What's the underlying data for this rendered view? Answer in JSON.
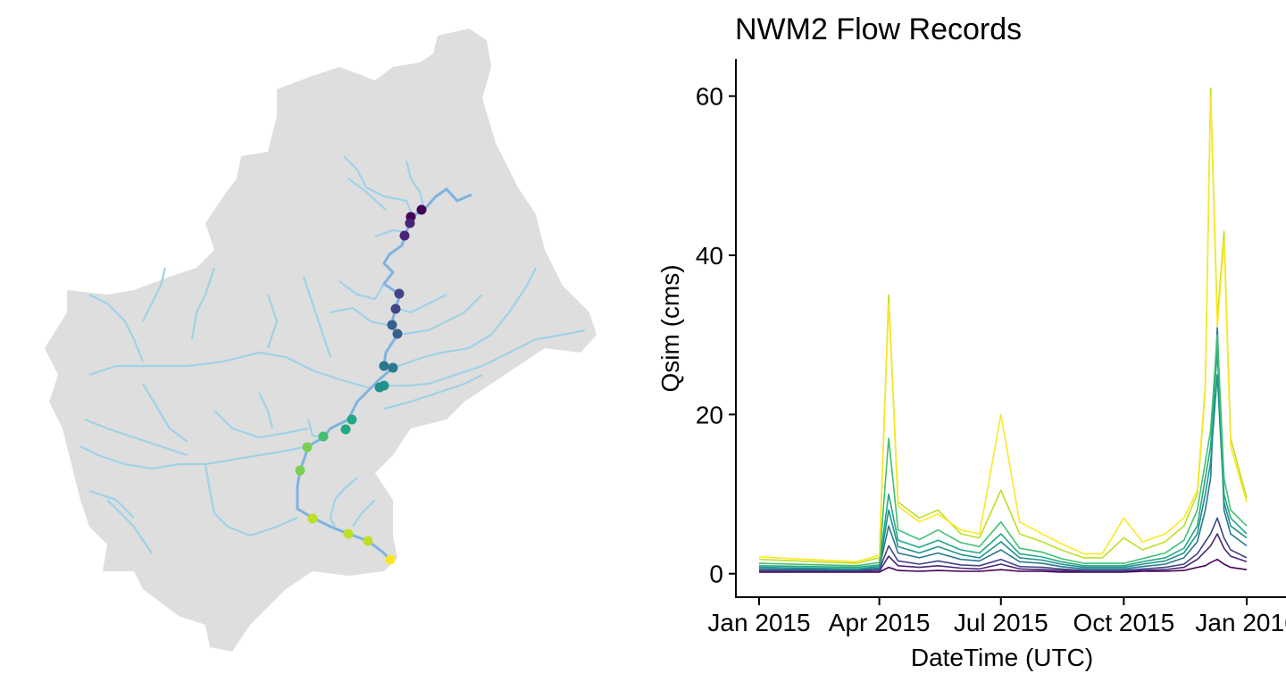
{
  "map": {
    "palette": [
      "#440154",
      "#482576",
      "#414487",
      "#35608d",
      "#2a788e",
      "#21918c",
      "#22a884",
      "#43bf71",
      "#7ad151",
      "#bddf26",
      "#fde725"
    ],
    "colors": {
      "basin_fill": "#dedede",
      "river": "#9fd2e8",
      "mainstem": "#7fb3df"
    }
  },
  "chart_data": {
    "type": "line",
    "title": "NWM2 Flow Records",
    "xlabel": "DateTime (UTC)",
    "ylabel": "Qsim (cms)",
    "xlim": [
      "2015-01-01",
      "2016-01-01"
    ],
    "ylim": [
      -2.5,
      64
    ],
    "x_ticks": [
      {
        "date": "2015-01-01",
        "label": "Jan 2015"
      },
      {
        "date": "2015-04-01",
        "label": "Apr 2015"
      },
      {
        "date": "2015-07-01",
        "label": "Jul 2015"
      },
      {
        "date": "2015-10-01",
        "label": "Oct 2015"
      },
      {
        "date": "2016-01-01",
        "label": "Jan 2016"
      }
    ],
    "y_ticks": [
      0,
      20,
      40,
      60
    ],
    "grid": false,
    "legend": "none",
    "x": [
      "2015-01-01",
      "2015-03-15",
      "2015-04-01",
      "2015-04-08",
      "2015-04-15",
      "2015-05-01",
      "2015-05-15",
      "2015-06-01",
      "2015-06-15",
      "2015-07-01",
      "2015-07-15",
      "2015-08-01",
      "2015-08-15",
      "2015-09-01",
      "2015-09-15",
      "2015-10-01",
      "2015-10-15",
      "2015-11-01",
      "2015-11-15",
      "2015-11-25",
      "2015-12-01",
      "2015-12-05",
      "2015-12-10",
      "2015-12-15",
      "2015-12-20",
      "2016-01-01"
    ],
    "series": [
      {
        "color": "#440154",
        "values": [
          0.2,
          0.2,
          0.2,
          0.8,
          0.4,
          0.3,
          0.4,
          0.3,
          0.3,
          0.5,
          0.3,
          0.3,
          0.2,
          0.2,
          0.2,
          0.2,
          0.3,
          0.3,
          0.4,
          0.8,
          1.0,
          1.4,
          1.8,
          1.2,
          0.8,
          0.5
        ]
      },
      {
        "color": "#482576",
        "values": [
          0.3,
          0.3,
          0.3,
          2.2,
          1.0,
          0.8,
          1.0,
          0.7,
          0.6,
          1.2,
          0.6,
          0.5,
          0.4,
          0.3,
          0.3,
          0.3,
          0.4,
          0.5,
          0.8,
          1.8,
          2.8,
          3.5,
          5.0,
          3.2,
          2.2,
          1.5
        ]
      },
      {
        "color": "#414487",
        "values": [
          0.4,
          0.4,
          0.5,
          3.5,
          1.6,
          1.2,
          1.6,
          1.1,
          1.0,
          1.8,
          0.9,
          0.8,
          0.6,
          0.4,
          0.4,
          0.4,
          0.6,
          0.8,
          1.2,
          2.5,
          4.0,
          5.0,
          7.0,
          4.5,
          3.0,
          2.0
        ]
      },
      {
        "color": "#2a788e",
        "values": [
          0.6,
          0.5,
          0.7,
          6.0,
          2.6,
          2.0,
          2.6,
          1.8,
          1.6,
          3.0,
          1.5,
          1.3,
          0.9,
          0.6,
          0.6,
          0.6,
          0.9,
          1.2,
          2.0,
          4.0,
          8.0,
          12.0,
          31.0,
          8.0,
          5.0,
          3.5
        ]
      },
      {
        "color": "#21918c",
        "values": [
          0.8,
          0.6,
          0.9,
          8.0,
          3.4,
          2.6,
          3.4,
          2.4,
          2.0,
          4.0,
          2.0,
          1.7,
          1.2,
          0.8,
          0.8,
          0.8,
          1.2,
          1.6,
          2.6,
          5.0,
          10.0,
          14.0,
          25.0,
          9.0,
          6.0,
          4.5
        ]
      },
      {
        "color": "#22a884",
        "values": [
          1.0,
          0.8,
          1.1,
          10.0,
          4.2,
          3.3,
          4.2,
          3.0,
          2.6,
          5.0,
          2.5,
          2.1,
          1.5,
          1.0,
          1.0,
          1.0,
          1.5,
          2.0,
          3.2,
          6.0,
          12.0,
          16.0,
          28.0,
          10.0,
          7.0,
          5.0
        ]
      },
      {
        "color": "#43bf71",
        "values": [
          1.3,
          1.0,
          1.4,
          17.0,
          5.5,
          4.3,
          5.5,
          3.9,
          3.4,
          6.5,
          3.2,
          2.7,
          1.9,
          1.3,
          1.3,
          1.3,
          1.9,
          2.6,
          4.2,
          8.0,
          14.0,
          18.0,
          30.0,
          12.0,
          8.0,
          6.0
        ]
      },
      {
        "color": "#bddf26",
        "values": [
          1.8,
          1.3,
          2.0,
          35.0,
          9.0,
          7.0,
          8.0,
          5.0,
          4.5,
          10.5,
          5.0,
          4.0,
          3.0,
          2.0,
          2.0,
          4.5,
          3.0,
          4.0,
          6.0,
          10.0,
          23.0,
          61.0,
          32.0,
          43.0,
          17.0,
          9.5
        ]
      },
      {
        "color": "#fde725",
        "values": [
          2.1,
          1.5,
          2.3,
          34.0,
          8.5,
          6.5,
          7.5,
          5.5,
          5.0,
          20.0,
          6.5,
          5.0,
          3.8,
          2.5,
          2.5,
          7.0,
          4.0,
          5.0,
          7.0,
          10.5,
          23.5,
          60.0,
          31.0,
          42.0,
          16.0,
          9.0
        ]
      }
    ]
  }
}
